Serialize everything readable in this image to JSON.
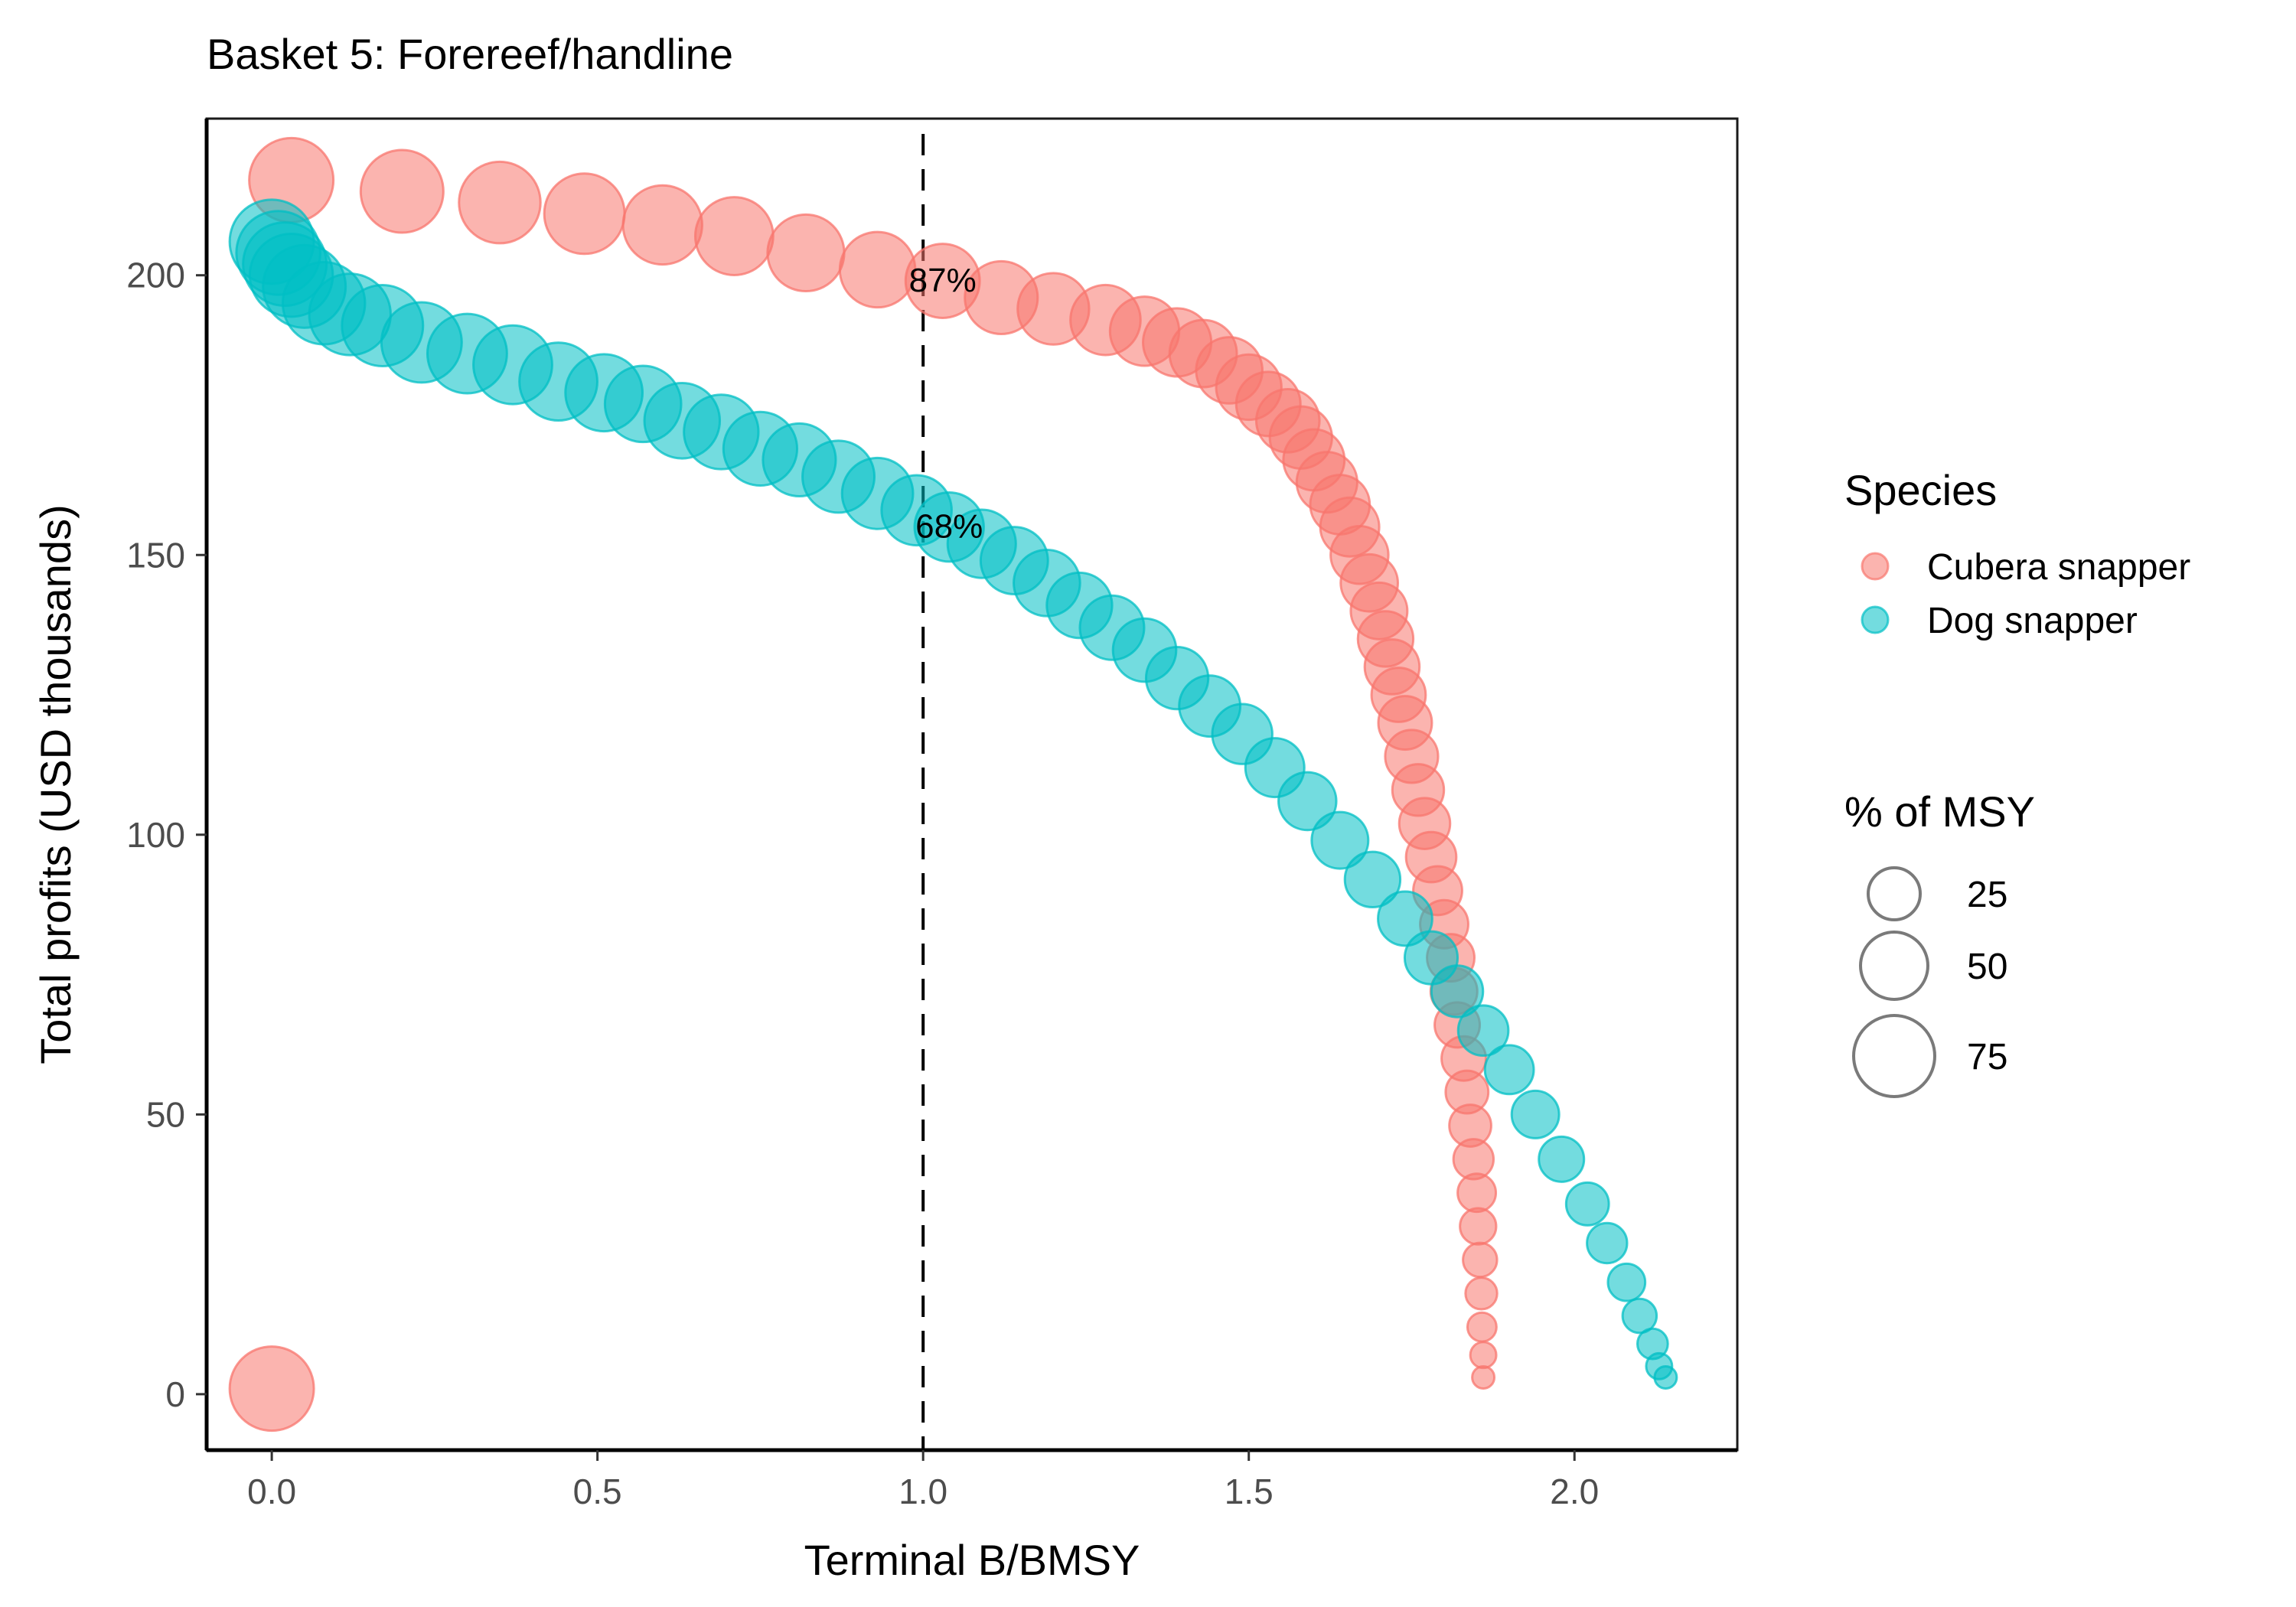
{
  "chart_data": {
    "type": "scatter",
    "title": "Basket 5: Forereef/handline",
    "xlabel": "Terminal B/BMSY",
    "ylabel": "Total profits (USD thousands)",
    "xlim": [
      -0.1,
      2.25
    ],
    "ylim": [
      -10,
      228
    ],
    "x_ticks": [
      0.0,
      0.5,
      1.0,
      1.5,
      2.0
    ],
    "x_tick_labels": [
      "0.0",
      "0.5",
      "1.0",
      "1.5",
      "2.0"
    ],
    "y_ticks": [
      0,
      50,
      100,
      150,
      200
    ],
    "y_tick_labels": [
      "0",
      "50",
      "100",
      "150",
      "200"
    ],
    "grid": false,
    "reference_line": {
      "x": 1.0,
      "style": "dashed"
    },
    "annotations": [
      {
        "text": "87%",
        "x": 1.03,
        "y": 199
      },
      {
        "text": "68%",
        "x": 1.04,
        "y": 155
      }
    ],
    "legend": {
      "placement": "right",
      "color_title": "Species",
      "size_title": "% of MSY",
      "size_keys": [
        {
          "label": "25",
          "value": 25
        },
        {
          "label": "50",
          "value": 50
        },
        {
          "label": "75",
          "value": 75
        }
      ]
    },
    "size_range_pct": [
      0,
      100
    ],
    "series": [
      {
        "name": "Cubera snapper",
        "color": "#F8766D",
        "points": [
          {
            "x": 0.03,
            "y": 217,
            "s": 100
          },
          {
            "x": 0.2,
            "y": 215,
            "s": 96
          },
          {
            "x": 0.35,
            "y": 213,
            "s": 93
          },
          {
            "x": 0.48,
            "y": 211,
            "s": 90
          },
          {
            "x": 0.6,
            "y": 209,
            "s": 87
          },
          {
            "x": 0.71,
            "y": 207,
            "s": 84
          },
          {
            "x": 0.82,
            "y": 204,
            "s": 81
          },
          {
            "x": 0.93,
            "y": 201,
            "s": 78
          },
          {
            "x": 1.03,
            "y": 199,
            "s": 75
          },
          {
            "x": 1.12,
            "y": 196,
            "s": 72
          },
          {
            "x": 1.2,
            "y": 194,
            "s": 69
          },
          {
            "x": 1.28,
            "y": 192,
            "s": 66
          },
          {
            "x": 1.34,
            "y": 190,
            "s": 64
          },
          {
            "x": 1.39,
            "y": 188,
            "s": 62
          },
          {
            "x": 1.43,
            "y": 186,
            "s": 60
          },
          {
            "x": 1.47,
            "y": 183,
            "s": 58
          },
          {
            "x": 1.5,
            "y": 180,
            "s": 56
          },
          {
            "x": 1.53,
            "y": 177,
            "s": 54
          },
          {
            "x": 1.56,
            "y": 174,
            "s": 52
          },
          {
            "x": 1.58,
            "y": 171,
            "s": 50
          },
          {
            "x": 1.6,
            "y": 167,
            "s": 48
          },
          {
            "x": 1.62,
            "y": 163,
            "s": 47
          },
          {
            "x": 1.64,
            "y": 159,
            "s": 45
          },
          {
            "x": 1.655,
            "y": 155,
            "s": 44
          },
          {
            "x": 1.67,
            "y": 150,
            "s": 42
          },
          {
            "x": 1.685,
            "y": 145,
            "s": 41
          },
          {
            "x": 1.7,
            "y": 140,
            "s": 40
          },
          {
            "x": 1.71,
            "y": 135,
            "s": 38
          },
          {
            "x": 1.72,
            "y": 130,
            "s": 37
          },
          {
            "x": 1.73,
            "y": 125,
            "s": 36
          },
          {
            "x": 1.74,
            "y": 120,
            "s": 35
          },
          {
            "x": 1.75,
            "y": 114,
            "s": 34
          },
          {
            "x": 1.76,
            "y": 108,
            "s": 32
          },
          {
            "x": 1.77,
            "y": 102,
            "s": 31
          },
          {
            "x": 1.78,
            "y": 96,
            "s": 30
          },
          {
            "x": 1.79,
            "y": 90,
            "s": 28
          },
          {
            "x": 1.8,
            "y": 84,
            "s": 27
          },
          {
            "x": 1.81,
            "y": 78,
            "s": 26
          },
          {
            "x": 1.815,
            "y": 72,
            "s": 25
          },
          {
            "x": 1.82,
            "y": 66,
            "s": 23
          },
          {
            "x": 1.83,
            "y": 60,
            "s": 22
          },
          {
            "x": 1.835,
            "y": 54,
            "s": 20
          },
          {
            "x": 1.84,
            "y": 48,
            "s": 19
          },
          {
            "x": 1.845,
            "y": 42,
            "s": 17
          },
          {
            "x": 1.85,
            "y": 36,
            "s": 15
          },
          {
            "x": 1.852,
            "y": 30,
            "s": 13
          },
          {
            "x": 1.855,
            "y": 24,
            "s": 11
          },
          {
            "x": 1.857,
            "y": 18,
            "s": 9
          },
          {
            "x": 1.858,
            "y": 12,
            "s": 7
          },
          {
            "x": 1.86,
            "y": 7,
            "s": 5
          },
          {
            "x": 1.86,
            "y": 3,
            "s": 3
          },
          {
            "x": 0.0,
            "y": 1,
            "s": 100
          }
        ]
      },
      {
        "name": "Dog snapper",
        "color": "#00BFC4",
        "points": [
          {
            "x": 0.0,
            "y": 206,
            "s": 100
          },
          {
            "x": 0.01,
            "y": 204,
            "s": 99
          },
          {
            "x": 0.02,
            "y": 202,
            "s": 98
          },
          {
            "x": 0.03,
            "y": 200,
            "s": 97
          },
          {
            "x": 0.05,
            "y": 198,
            "s": 96
          },
          {
            "x": 0.08,
            "y": 195,
            "s": 95
          },
          {
            "x": 0.12,
            "y": 193,
            "s": 93
          },
          {
            "x": 0.17,
            "y": 191,
            "s": 92
          },
          {
            "x": 0.23,
            "y": 188,
            "s": 90
          },
          {
            "x": 0.3,
            "y": 186,
            "s": 88
          },
          {
            "x": 0.37,
            "y": 184,
            "s": 86
          },
          {
            "x": 0.44,
            "y": 181,
            "s": 84
          },
          {
            "x": 0.51,
            "y": 179,
            "s": 82
          },
          {
            "x": 0.57,
            "y": 177,
            "s": 80
          },
          {
            "x": 0.63,
            "y": 174,
            "s": 78
          },
          {
            "x": 0.69,
            "y": 172,
            "s": 76
          },
          {
            "x": 0.75,
            "y": 169,
            "s": 74
          },
          {
            "x": 0.81,
            "y": 167,
            "s": 72
          },
          {
            "x": 0.87,
            "y": 164,
            "s": 70
          },
          {
            "x": 0.93,
            "y": 161,
            "s": 68
          },
          {
            "x": 0.99,
            "y": 158,
            "s": 66
          },
          {
            "x": 1.04,
            "y": 155,
            "s": 64
          },
          {
            "x": 1.09,
            "y": 152,
            "s": 62
          },
          {
            "x": 1.14,
            "y": 149,
            "s": 60
          },
          {
            "x": 1.19,
            "y": 145,
            "s": 58
          },
          {
            "x": 1.24,
            "y": 141,
            "s": 56
          },
          {
            "x": 1.29,
            "y": 137,
            "s": 54
          },
          {
            "x": 1.34,
            "y": 133,
            "s": 52
          },
          {
            "x": 1.39,
            "y": 128,
            "s": 50
          },
          {
            "x": 1.44,
            "y": 123,
            "s": 48
          },
          {
            "x": 1.49,
            "y": 118,
            "s": 46
          },
          {
            "x": 1.54,
            "y": 112,
            "s": 44
          },
          {
            "x": 1.59,
            "y": 106,
            "s": 42
          },
          {
            "x": 1.64,
            "y": 99,
            "s": 40
          },
          {
            "x": 1.69,
            "y": 92,
            "s": 38
          },
          {
            "x": 1.74,
            "y": 85,
            "s": 36
          },
          {
            "x": 1.78,
            "y": 78,
            "s": 34
          },
          {
            "x": 1.82,
            "y": 72,
            "s": 32
          },
          {
            "x": 1.86,
            "y": 65,
            "s": 30
          },
          {
            "x": 1.9,
            "y": 58,
            "s": 28
          },
          {
            "x": 1.94,
            "y": 50,
            "s": 26
          },
          {
            "x": 1.98,
            "y": 42,
            "s": 23
          },
          {
            "x": 2.02,
            "y": 34,
            "s": 20
          },
          {
            "x": 2.05,
            "y": 27,
            "s": 17
          },
          {
            "x": 2.08,
            "y": 20,
            "s": 14
          },
          {
            "x": 2.1,
            "y": 14,
            "s": 11
          },
          {
            "x": 2.12,
            "y": 9,
            "s": 8
          },
          {
            "x": 2.13,
            "y": 5,
            "s": 5
          },
          {
            "x": 2.14,
            "y": 3,
            "s": 3
          }
        ]
      }
    ]
  }
}
